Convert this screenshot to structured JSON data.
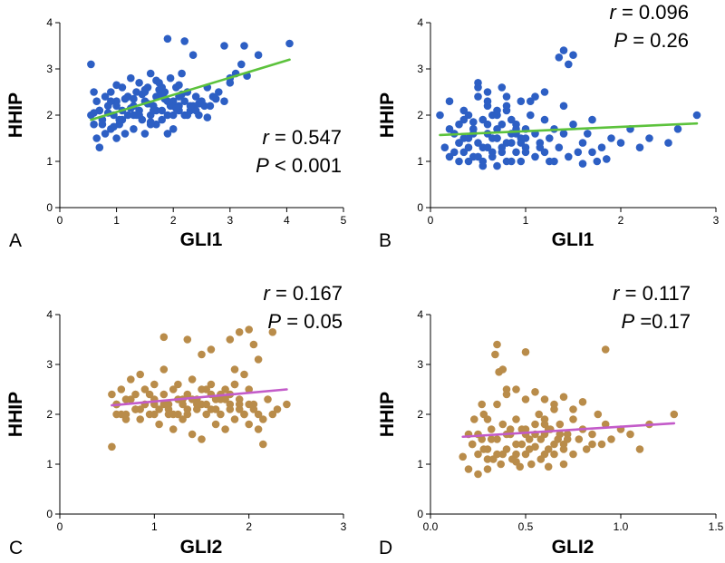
{
  "chart_data": [
    {
      "panel": "A",
      "type": "scatter",
      "xlabel": "GLI1",
      "ylabel": "HHIP",
      "xlim": [
        0,
        5
      ],
      "ylim": [
        0,
        4
      ],
      "xticks": [
        "0",
        "1",
        "2",
        "3",
        "4",
        "5"
      ],
      "yticks": [
        "0",
        "1",
        "2",
        "3",
        "4"
      ],
      "point_color": "#2d5fc4",
      "line_color": "#5cc23c",
      "stats": {
        "r_symbol": "r",
        "r_text": " = 0.547",
        "p_symbol": "P",
        "p_text": " < 0.001"
      },
      "fit": {
        "x": [
          0.55,
          4.05
        ],
        "y": [
          1.9,
          3.2
        ]
      },
      "x": [
        0.55,
        0.55,
        0.6,
        0.6,
        0.65,
        0.65,
        0.7,
        0.7,
        0.75,
        0.8,
        0.8,
        0.85,
        0.9,
        0.9,
        0.95,
        1.0,
        1.0,
        1.05,
        1.1,
        1.1,
        1.15,
        1.2,
        1.2,
        1.25,
        1.3,
        1.3,
        1.35,
        1.4,
        1.4,
        1.45,
        1.5,
        1.5,
        1.55,
        1.6,
        1.6,
        1.65,
        1.7,
        1.7,
        1.75,
        1.8,
        1.8,
        1.85,
        1.9,
        1.9,
        1.95,
        2.0,
        2.0,
        2.05,
        2.1,
        2.1,
        2.15,
        2.2,
        2.25,
        2.3,
        2.35,
        2.4,
        2.45,
        2.5,
        2.6,
        2.65,
        2.7,
        2.8,
        2.9,
        3.0,
        3.1,
        3.2,
        3.3,
        0.7,
        1.0,
        1.3,
        1.6,
        1.9,
        2.2,
        0.9,
        1.2,
        1.5,
        1.8,
        2.1,
        2.4,
        1.1,
        1.4,
        1.7,
        2.0,
        2.3,
        0.75,
        1.05,
        1.35,
        1.65,
        1.95,
        2.25,
        2.55,
        1.9,
        2.2,
        2.35,
        2.9,
        3.25,
        3.5,
        4.05,
        0.6,
        1.15,
        1.45,
        1.75,
        2.05,
        0.85,
        1.25,
        1.55,
        1.85,
        2.15,
        2.45,
        2.75,
        0.95,
        1.6,
        2.6,
        3.0,
        1.0,
        1.7,
        2.0,
        1.3,
        1.5,
        1.8,
        2.1
      ],
      "y": [
        3.1,
        2.0,
        2.5,
        1.8,
        2.3,
        1.5,
        1.3,
        2.1,
        1.9,
        2.4,
        1.6,
        2.2,
        1.7,
        2.5,
        2.0,
        2.3,
        1.5,
        1.8,
        2.6,
        2.1,
        1.6,
        2.4,
        2.0,
        2.8,
        2.2,
        1.7,
        2.5,
        2.1,
        2.7,
        1.9,
        2.3,
        1.6,
        2.6,
        2.0,
        2.9,
        2.2,
        1.8,
        2.4,
        2.7,
        2.1,
        1.9,
        2.5,
        2.3,
        2.0,
        2.8,
        2.2,
        1.7,
        2.6,
        2.4,
        2.1,
        2.9,
        2.3,
        2.5,
        2.1,
        2.2,
        2.4,
        2.0,
        2.3,
        2.6,
        2.2,
        2.4,
        2.5,
        2.3,
        2.7,
        2.9,
        3.1,
        2.85,
        2.1,
        2.2,
        2.0,
        1.8,
        1.6,
        2.0,
        2.3,
        2.4,
        2.5,
        2.6,
        2.2,
        2.1,
        1.9,
        2.0,
        2.1,
        2.3,
        2.2,
        1.8,
        1.9,
        2.0,
        2.1,
        2.2,
        2.0,
        2.2,
        3.65,
        3.6,
        3.3,
        3.5,
        3.5,
        3.3,
        3.55,
        2.05,
        2.35,
        2.45,
        2.55,
        2.15,
        2.05,
        2.15,
        2.25,
        2.35,
        2.45,
        2.25,
        2.35,
        1.75,
        1.85,
        1.95,
        2.8,
        2.65,
        2.75,
        2.0,
        2.35,
        2.55,
        2.45,
        2.65
      ]
    },
    {
      "panel": "B",
      "type": "scatter",
      "xlabel": "GLI1",
      "ylabel": "HHIP",
      "xlim": [
        0,
        3
      ],
      "ylim": [
        0,
        4
      ],
      "xticks": [
        "0",
        "1",
        "2",
        "3"
      ],
      "yticks": [
        "0",
        "1",
        "2",
        "3",
        "4"
      ],
      "point_color": "#2d5fc4",
      "line_color": "#5cc23c",
      "stats": {
        "r_symbol": "r",
        "r_text": " = 0.096",
        "p_symbol": "P",
        "p_text": " = 0.26"
      },
      "fit": {
        "x": [
          0.1,
          2.8
        ],
        "y": [
          1.57,
          1.82
        ]
      },
      "x": [
        0.1,
        0.15,
        0.2,
        0.2,
        0.25,
        0.3,
        0.3,
        0.35,
        0.35,
        0.4,
        0.4,
        0.45,
        0.45,
        0.5,
        0.5,
        0.55,
        0.55,
        0.6,
        0.6,
        0.65,
        0.65,
        0.7,
        0.7,
        0.75,
        0.75,
        0.8,
        0.8,
        0.85,
        0.85,
        0.9,
        0.9,
        0.95,
        0.95,
        1.0,
        1.0,
        1.05,
        1.1,
        1.1,
        1.15,
        1.2,
        1.2,
        1.25,
        1.3,
        1.3,
        1.35,
        1.4,
        1.4,
        1.45,
        1.5,
        1.55,
        1.6,
        1.65,
        1.7,
        1.75,
        1.8,
        1.9,
        2.0,
        2.1,
        2.3,
        2.5,
        2.6,
        2.8,
        1.35,
        1.4,
        1.45,
        1.5,
        0.5,
        0.6,
        0.75,
        0.8,
        1.05,
        0.25,
        0.3,
        0.4,
        0.45,
        0.55,
        0.65,
        0.7,
        0.85,
        0.9,
        0.95,
        0.35,
        0.5,
        0.6,
        0.7,
        0.8,
        0.9,
        1.0,
        1.2,
        0.2,
        0.4,
        0.55,
        0.65,
        0.75,
        0.85,
        1.0,
        1.15,
        1.25,
        0.3,
        0.45,
        0.6,
        0.7,
        0.8,
        0.95,
        1.1,
        0.5,
        0.6,
        0.7,
        0.35,
        0.45,
        1.6,
        1.7,
        1.85,
        2.2
      ],
      "y": [
        2.0,
        1.3,
        1.7,
        2.3,
        1.2,
        1.8,
        1.0,
        2.1,
        1.5,
        1.3,
        2.0,
        1.7,
        1.1,
        2.4,
        1.4,
        1.9,
        1.0,
        2.2,
        1.6,
        1.2,
        2.0,
        1.5,
        0.9,
        1.8,
        1.3,
        2.1,
        1.0,
        1.6,
        1.4,
        1.2,
        1.8,
        1.5,
        1.0,
        1.7,
        1.3,
        2.0,
        1.1,
        1.6,
        1.4,
        1.9,
        1.2,
        1.5,
        1.7,
        1.0,
        1.3,
        2.2,
        1.6,
        1.1,
        1.8,
        1.2,
        1.4,
        1.6,
        1.9,
        1.0,
        1.3,
        1.5,
        1.4,
        1.7,
        1.5,
        1.4,
        1.7,
        2.0,
        3.25,
        3.4,
        3.1,
        3.3,
        2.7,
        2.5,
        2.6,
        2.4,
        2.3,
        1.6,
        1.4,
        1.5,
        1.7,
        1.3,
        1.5,
        1.7,
        1.9,
        1.6,
        1.4,
        1.2,
        1.1,
        1.3,
        1.5,
        1.4,
        1.7,
        1.5,
        2.5,
        1.1,
        1.0,
        0.9,
        1.1,
        1.2,
        1.0,
        1.2,
        1.3,
        1.0,
        1.4,
        1.6,
        1.8,
        2.0,
        2.2,
        2.3,
        2.4,
        2.6,
        2.3,
        2.1,
        1.9,
        1.85,
        0.95,
        1.2,
        1.05,
        1.3
      ]
    },
    {
      "panel": "C",
      "type": "scatter",
      "xlabel": "GLI2",
      "ylabel": "HHIP",
      "xlim": [
        0,
        3
      ],
      "ylim": [
        0,
        4
      ],
      "xticks": [
        "0",
        "1",
        "2",
        "3"
      ],
      "yticks": [
        "0",
        "1",
        "2",
        "3",
        "4"
      ],
      "point_color": "#b98c4a",
      "line_color": "#c35bc9",
      "stats": {
        "r_symbol": "r",
        "r_text": " = 0.167",
        "p_symbol": "P",
        "p_text": " = 0.05"
      },
      "fit": {
        "x": [
          0.55,
          2.4
        ],
        "y": [
          2.18,
          2.5
        ]
      },
      "x": [
        0.55,
        0.55,
        0.6,
        0.6,
        0.65,
        0.7,
        0.7,
        0.75,
        0.8,
        0.8,
        0.85,
        0.85,
        0.9,
        0.9,
        0.95,
        1.0,
        1.0,
        1.05,
        1.05,
        1.1,
        1.1,
        1.15,
        1.15,
        1.2,
        1.2,
        1.25,
        1.25,
        1.3,
        1.3,
        1.35,
        1.35,
        1.4,
        1.4,
        1.45,
        1.45,
        1.5,
        1.5,
        1.55,
        1.55,
        1.6,
        1.6,
        1.65,
        1.65,
        1.7,
        1.7,
        1.75,
        1.75,
        1.8,
        1.8,
        1.85,
        1.85,
        1.9,
        1.9,
        1.95,
        2.0,
        2.0,
        2.05,
        2.1,
        2.1,
        2.15,
        2.2,
        2.25,
        2.3,
        2.4,
        0.6,
        0.75,
        0.9,
        1.0,
        1.15,
        1.3,
        1.45,
        1.6,
        1.75,
        1.9,
        2.05,
        0.7,
        0.85,
        1.0,
        1.2,
        1.35,
        1.5,
        1.65,
        1.8,
        1.95,
        2.15,
        0.65,
        0.8,
        0.95,
        1.1,
        1.25,
        1.4,
        1.55,
        1.7,
        1.85,
        2.0,
        1.1,
        1.35,
        1.5,
        1.6,
        1.8,
        1.9,
        2.0,
        2.05,
        2.1,
        2.25,
        1.85,
        1.95
      ],
      "y": [
        2.4,
        1.35,
        2.0,
        2.2,
        2.5,
        1.9,
        2.3,
        2.7,
        2.1,
        2.4,
        2.8,
        1.9,
        2.2,
        2.5,
        2.0,
        2.3,
        2.6,
        1.8,
        2.1,
        2.4,
        2.9,
        2.0,
        2.2,
        2.5,
        1.7,
        2.3,
        2.6,
        1.9,
        2.2,
        2.4,
        2.0,
        2.7,
        1.6,
        2.1,
        2.3,
        2.5,
        1.5,
        2.0,
        2.2,
        2.4,
        2.6,
        1.8,
        2.1,
        2.3,
        2.0,
        2.5,
        1.7,
        2.2,
        2.4,
        1.9,
        2.6,
        2.1,
        2.3,
        2.0,
        1.8,
        2.5,
        2.2,
        1.7,
        2.0,
        1.4,
        2.3,
        2.0,
        2.1,
        2.2,
        2.2,
        2.3,
        2.2,
        2.0,
        2.1,
        2.3,
        2.2,
        2.1,
        2.3,
        2.2,
        2.1,
        2.0,
        2.1,
        2.2,
        2.0,
        2.1,
        2.2,
        2.3,
        2.1,
        2.0,
        1.9,
        2.0,
        2.1,
        2.4,
        2.2,
        2.0,
        2.3,
        2.5,
        2.4,
        2.6,
        2.2,
        3.55,
        3.5,
        3.2,
        3.3,
        3.5,
        3.65,
        3.7,
        3.4,
        3.1,
        3.65,
        2.9,
        2.8
      ]
    },
    {
      "panel": "D",
      "type": "scatter",
      "xlabel": "GLI2",
      "ylabel": "HHIP",
      "xlim": [
        0,
        1.5
      ],
      "ylim": [
        0,
        4
      ],
      "xticks": [
        "0.0",
        "0.5",
        "1.0",
        "1.5"
      ],
      "yticks": [
        "0",
        "1",
        "2",
        "3",
        "4"
      ],
      "point_color": "#b98c4a",
      "line_color": "#c35bc9",
      "stats": {
        "r_symbol": "r",
        "r_text": " = 0.117",
        "p_symbol": "P",
        "p_text": " =0.17"
      },
      "fit": {
        "x": [
          0.17,
          1.28
        ],
        "y": [
          1.55,
          1.82
        ]
      },
      "x": [
        0.17,
        0.2,
        0.2,
        0.22,
        0.23,
        0.25,
        0.25,
        0.27,
        0.28,
        0.3,
        0.3,
        0.32,
        0.33,
        0.35,
        0.35,
        0.37,
        0.38,
        0.4,
        0.4,
        0.42,
        0.43,
        0.45,
        0.45,
        0.47,
        0.48,
        0.5,
        0.5,
        0.52,
        0.53,
        0.55,
        0.55,
        0.57,
        0.58,
        0.6,
        0.6,
        0.62,
        0.63,
        0.65,
        0.65,
        0.67,
        0.68,
        0.7,
        0.7,
        0.72,
        0.75,
        0.78,
        0.8,
        0.82,
        0.85,
        0.88,
        0.9,
        0.92,
        0.95,
        1.0,
        1.05,
        1.1,
        1.15,
        1.28,
        0.34,
        0.35,
        0.36,
        0.38,
        0.5,
        0.92,
        0.27,
        0.3,
        0.4,
        0.45,
        0.55,
        0.6,
        0.65,
        0.7,
        0.75,
        0.8,
        0.25,
        0.32,
        0.42,
        0.5,
        0.58,
        0.62,
        0.68,
        0.22,
        0.28,
        0.35,
        0.48,
        0.55,
        0.65,
        0.72,
        0.3,
        0.38,
        0.45,
        0.52,
        0.6,
        0.7,
        0.85,
        0.4,
        0.5,
        0.6,
        0.45,
        0.62,
        0.75
      ],
      "y": [
        1.15,
        1.6,
        0.9,
        1.4,
        1.9,
        1.2,
        0.8,
        1.5,
        2.0,
        1.3,
        0.9,
        1.7,
        1.1,
        2.2,
        1.5,
        1.0,
        1.8,
        1.3,
        2.5,
        1.6,
        1.1,
        1.9,
        1.4,
        0.95,
        1.7,
        1.2,
        2.3,
        1.5,
        1.0,
        1.8,
        1.35,
        2.0,
        1.1,
        1.6,
        1.9,
        1.3,
        1.7,
        1.2,
        2.1,
        1.5,
        1.8,
        1.4,
        1.0,
        1.6,
        1.9,
        1.5,
        1.7,
        1.3,
        1.6,
        2.0,
        1.4,
        1.8,
        1.5,
        1.7,
        1.6,
        1.3,
        1.8,
        2.0,
        3.2,
        3.4,
        2.85,
        2.9,
        3.25,
        3.3,
        2.2,
        1.9,
        2.4,
        2.5,
        2.45,
        2.3,
        2.2,
        2.35,
        2.1,
        2.25,
        1.6,
        1.5,
        1.7,
        1.6,
        1.5,
        1.7,
        1.6,
        1.4,
        1.3,
        1.2,
        1.4,
        1.6,
        1.4,
        1.5,
        1.1,
        1.2,
        1.2,
        1.3,
        1.2,
        1.3,
        1.4,
        1.6,
        1.7,
        1.8,
        1.05,
        0.95,
        1.2
      ]
    }
  ],
  "panel_letters": [
    "A",
    "B",
    "C",
    "D"
  ]
}
